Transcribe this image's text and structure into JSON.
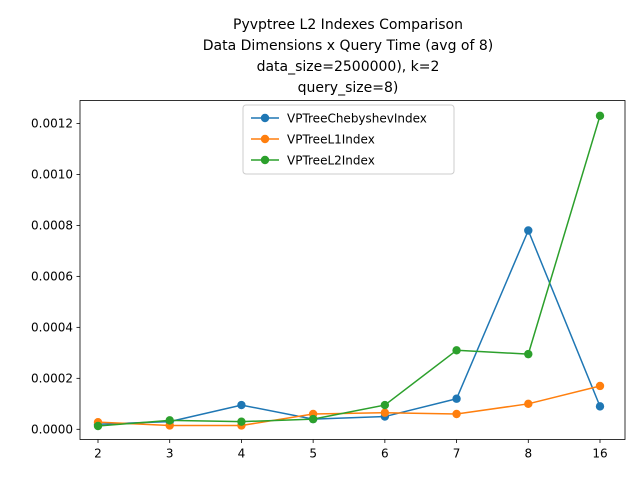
{
  "chart_data": {
    "type": "line",
    "title_lines": [
      "Pyvptree L2 Indexes Comparison",
      "Data Dimensions x Query Time (avg of 8)",
      "data_size=2500000), k=2",
      "query_size=8)"
    ],
    "xlabel": "",
    "ylabel": "",
    "categories": [
      "2",
      "3",
      "4",
      "5",
      "6",
      "7",
      "8",
      "16"
    ],
    "ylim": [
      -4e-05,
      0.00129
    ],
    "yticks": [
      0.0,
      0.0002,
      0.0004,
      0.0006,
      0.0008,
      0.001,
      0.0012
    ],
    "ytick_labels": [
      "0.0000",
      "0.0002",
      "0.0004",
      "0.0006",
      "0.0008",
      "0.0010",
      "0.0012"
    ],
    "grid": false,
    "legend_position": "upper center",
    "series": [
      {
        "name": "VPTreeChebyshevIndex",
        "color": "#1f77b4",
        "values": [
          2e-05,
          3e-05,
          9.5e-05,
          4e-05,
          5e-05,
          0.00012,
          0.00078,
          9e-05
        ]
      },
      {
        "name": "VPTreeL1Index",
        "color": "#ff7f0e",
        "values": [
          2.8e-05,
          1.5e-05,
          1.5e-05,
          6e-05,
          6.5e-05,
          6e-05,
          0.0001,
          0.00017
        ]
      },
      {
        "name": "VPTreeL2Index",
        "color": "#2ca02c",
        "values": [
          1.3e-05,
          3.5e-05,
          3e-05,
          4e-05,
          9.5e-05,
          0.00031,
          0.000295,
          0.00123
        ]
      }
    ]
  }
}
